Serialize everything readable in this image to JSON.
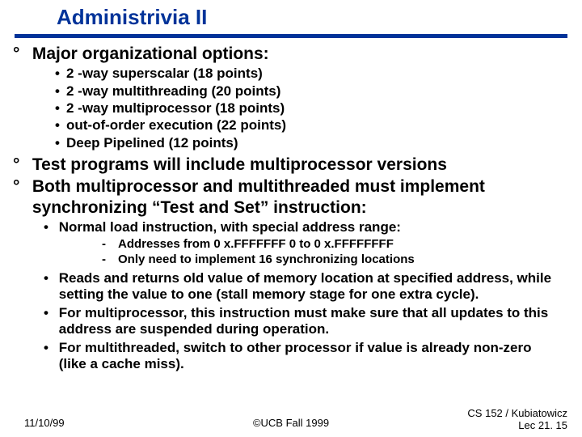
{
  "title": "Administrivia II",
  "colors": {
    "accent": "#003399",
    "text": "#000000",
    "bg": "#ffffff"
  },
  "p1": {
    "heading": "Major organizational options:",
    "items": [
      "2 -way superscalar (18 points)",
      "2 -way multithreading (20 points)",
      "2 -way multiprocessor (18 points)",
      "out-of-order execution (22 points)",
      "Deep Pipelined (12 points)"
    ]
  },
  "p2": "Test programs will include multiprocessor versions",
  "p3": "Both multiprocessor and multithreaded must implement synchronizing “Test and Set” instruction:",
  "p3_sub": [
    {
      "text": "Normal load instruction, with special address range:",
      "sub": [
        "Addresses from 0 x.FFFFFFF 0 to 0 x.FFFFFFFF",
        "Only need to implement 16 synchronizing locations"
      ]
    },
    {
      "text": "Reads and returns old value of memory location at specified address, while setting the value to one (stall memory stage for one extra cycle)."
    },
    {
      "text": "For multiprocessor, this instruction must make sure that all updates to this address are suspended during operation."
    },
    {
      "text": "For multithreaded, switch to other processor if value is already non-zero (like a cache miss)."
    }
  ],
  "footer": {
    "left": "11/10/99",
    "center": "©UCB Fall 1999",
    "right1": "CS 152 / Kubiatowicz",
    "right2": "Lec 21. 15"
  }
}
